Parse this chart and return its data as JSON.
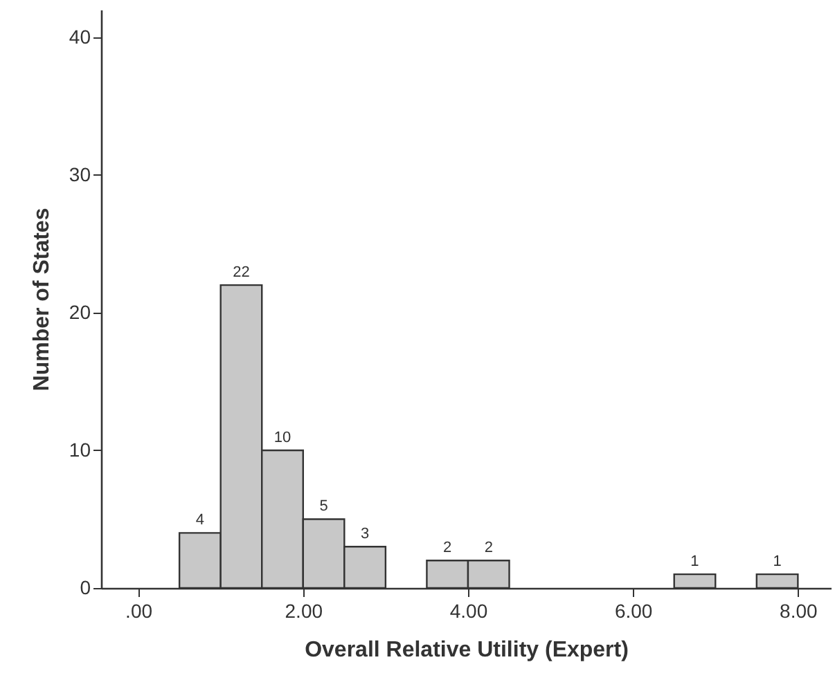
{
  "chart_data": {
    "type": "histogram",
    "xlabel": "Overall Relative Utility (Expert)",
    "ylabel": "Number of States",
    "bins": [
      0.5,
      1.0,
      1.5,
      2.0,
      2.5,
      3.0,
      3.5,
      4.0,
      4.5,
      5.0,
      5.5,
      6.0,
      6.5,
      7.0,
      7.5,
      8.0
    ],
    "values": [
      4,
      22,
      10,
      5,
      3,
      0,
      2,
      2,
      0,
      0,
      0,
      0,
      1,
      0,
      1
    ],
    "value_labels": [
      "4",
      "22",
      "10",
      "5",
      "3",
      null,
      "2",
      "2",
      null,
      null,
      null,
      null,
      "1",
      null,
      "1"
    ],
    "color": "#c8c8c8",
    "xlim": [
      -0.45,
      8.4
    ],
    "xticks": [
      {
        "value": 0,
        "label": ".00"
      },
      {
        "value": 2,
        "label": "2.00"
      },
      {
        "value": 4,
        "label": "4.00"
      },
      {
        "value": 6,
        "label": "6.00"
      },
      {
        "value": 8,
        "label": "8.00"
      }
    ],
    "ylim": [
      0,
      42
    ],
    "yticks": [
      0,
      10,
      20,
      30,
      40
    ],
    "grid": false
  }
}
